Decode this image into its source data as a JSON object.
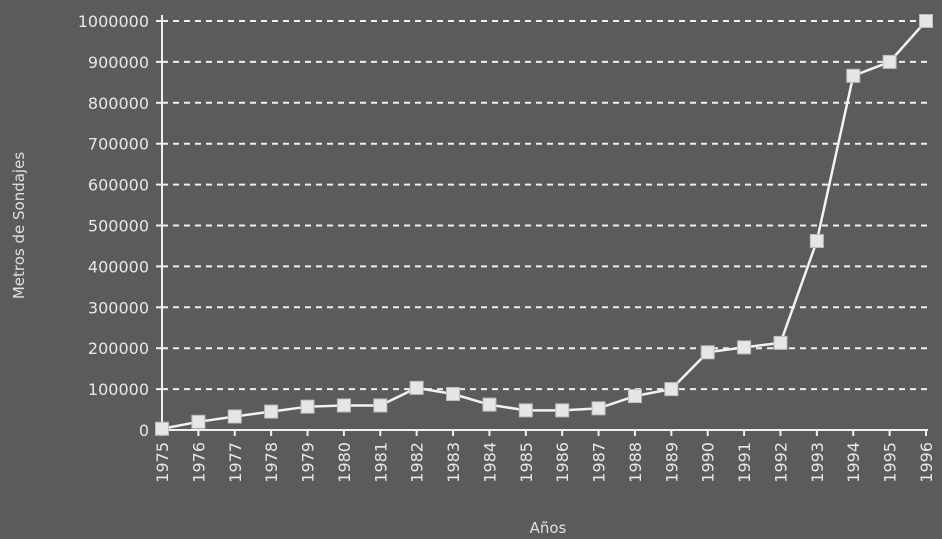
{
  "chart_data": {
    "type": "line",
    "title": "",
    "xlabel": "Años",
    "ylabel": "Metros de Sondajes",
    "x": [
      "1975",
      "1976",
      "1977",
      "1978",
      "1979",
      "1980",
      "1981",
      "1982",
      "1983",
      "1984",
      "1985",
      "1986",
      "1987",
      "1988",
      "1989",
      "1990",
      "1991",
      "1992",
      "1993",
      "1994",
      "1995",
      "1996"
    ],
    "series": [
      {
        "values": [
          3000,
          20000,
          33000,
          45000,
          57000,
          60000,
          60000,
          103000,
          88000,
          62000,
          48000,
          48000,
          53000,
          83000,
          100000,
          190000,
          202000,
          213000,
          462000,
          866000,
          900000,
          1000000
        ]
      }
    ],
    "y_ticks": [
      "0",
      "100000",
      "200000",
      "300000",
      "400000",
      "500000",
      "600000",
      "700000",
      "800000",
      "900000",
      "1000000"
    ],
    "ylim": [
      0,
      1000000
    ],
    "grid": true,
    "grid_style": "dashed",
    "legend": "none",
    "marker": "square",
    "colors": {
      "background": "#5b5b5b",
      "line": "#f2f2f2",
      "marker": "#e6e6e6",
      "grid": "#f0f0f0",
      "axis": "#f0f0f0",
      "text": "#e8e8e8"
    }
  }
}
